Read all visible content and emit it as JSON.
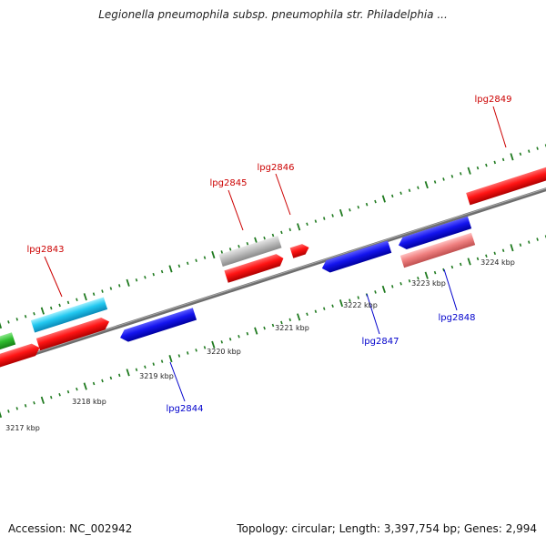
{
  "header": {
    "title": "Legionella pneumophila subsp. pneumophila str. Philadelphia ..."
  },
  "footer": {
    "accession": "Accession: NC_002942",
    "summary": "Topology: circular; Length: 3,397,754 bp; Genes: 2,994"
  },
  "colors": {
    "backbone": "#808080",
    "ticks": "#1f7a1f",
    "forward_label": "#cc0000",
    "reverse_label": "#0000cc",
    "tick_label": "#222222"
  },
  "scale_labels": [
    "3217 kbp",
    "3218 kbp",
    "3219 kbp",
    "3220 kbp",
    "3221 kbp",
    "3222 kbp",
    "3223 kbp",
    "3224 kbp"
  ],
  "gene_labels": {
    "forward": [
      "lpg2843",
      "lpg2845",
      "lpg2846",
      "lpg2849"
    ],
    "reverse": [
      "lpg2844",
      "lpg2847",
      "lpg2848"
    ]
  }
}
